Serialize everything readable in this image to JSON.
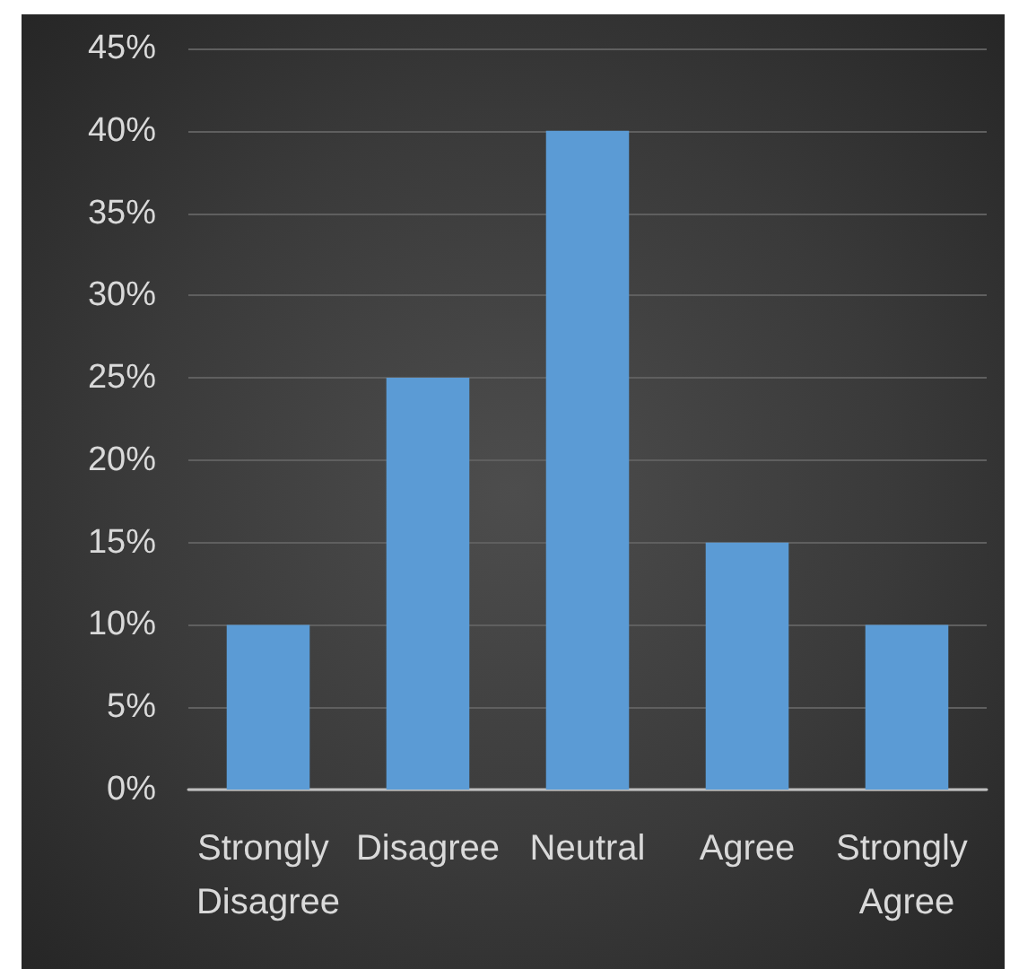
{
  "chart_data": {
    "type": "bar",
    "categories": [
      "Strongly Disagree",
      "Disagree",
      "Neutral",
      "Agree",
      "Strongly Agree"
    ],
    "values": [
      10,
      25,
      40,
      15,
      10
    ],
    "color": "#5b9bd5",
    "ylim": [
      0,
      45
    ],
    "yticks": [
      {
        "value": 0,
        "label": "0%"
      },
      {
        "value": 5,
        "label": "5%"
      },
      {
        "value": 10,
        "label": "10%"
      },
      {
        "value": 15,
        "label": "15%"
      },
      {
        "value": 20,
        "label": "20%"
      },
      {
        "value": 25,
        "label": "25%"
      },
      {
        "value": 30,
        "label": "30%"
      },
      {
        "value": 35,
        "label": "35%"
      },
      {
        "value": 40,
        "label": "40%"
      },
      {
        "value": 45,
        "label": "45%"
      }
    ],
    "grid": true
  }
}
